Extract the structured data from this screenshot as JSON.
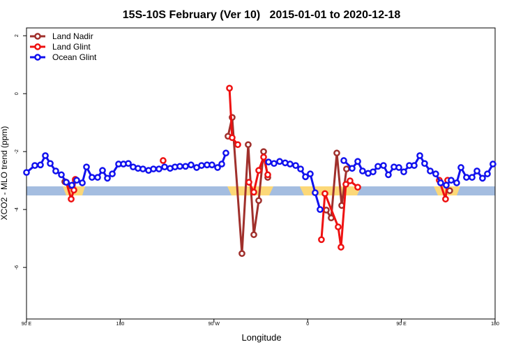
{
  "chart_data": {
    "type": "line",
    "title": "15S-10S February (Ver 10)   2015-01-01 to 2020-12-18",
    "x_label": "Longitude",
    "y_label": "XCO2 - MLO trend (ppm)",
    "xlim": [
      90,
      540
    ],
    "ylim": [
      -7.78,
      2.27
    ],
    "xticks": [
      {
        "value": 90,
        "label": "90 E"
      },
      180,
      {
        "value": 270,
        "label": "90 W"
      },
      {
        "value": 360,
        "label": "0"
      },
      {
        "value": 450,
        "label": "90 E"
      },
      {
        "value": 540,
        "label": "180"
      }
    ],
    "yticks": [
      -6,
      -4,
      -2,
      0,
      2
    ],
    "legend": "top-left",
    "series": [
      {
        "name": "Land Nadir",
        "color": "#a0302c",
        "x": [
          126.8,
          132.2,
          136.9,
          null,
          283.5,
          287.5,
          296.9,
          302.9,
          308.3,
          313.0,
          317.7,
          321.7,
          null,
          377.9,
          382.6,
          388.0,
          392.7,
          397.3,
          null,
          487.7,
          496.4
        ],
        "values": [
          -3.04,
          -3.18,
          -2.99,
          null,
          -1.47,
          -0.82,
          -5.52,
          -1.76,
          -4.87,
          -3.69,
          -2.0,
          -2.89,
          null,
          -4.02,
          -4.29,
          -2.05,
          -3.86,
          -2.6,
          null,
          -3.08,
          -3.35
        ]
      },
      {
        "name": "Land Glint",
        "color": "#ee1111",
        "x": [
          128.2,
          132.9,
          135.5,
          136.9,
          null,
          221.2,
          null,
          284.9,
          287.5,
          292.9,
          null,
          303.6,
          308.3,
          313.0,
          317.7,
          321.7,
          null,
          373.2,
          376.6,
          389.3,
          392.0,
          396.7,
          400.7,
          408.1,
          null,
          486.4,
          492.4,
          494.4
        ],
        "values": [
          -3.06,
          -3.64,
          -3.33,
          -2.96,
          null,
          -2.31,
          null,
          0.19,
          -1.52,
          -1.76,
          null,
          -3.06,
          -3.4,
          -2.65,
          -2.19,
          -2.8,
          null,
          -5.04,
          -3.45,
          -4.6,
          -5.3,
          -3.13,
          -3.01,
          -3.23,
          null,
          -2.99,
          -3.64,
          -2.99
        ]
      },
      {
        "name": "Ocean Glint",
        "color": "#1111ee",
        "x": [
          90.0,
          98.0,
          103.4,
          108.1,
          112.8,
          118.1,
          123.5,
          128.2,
          133.5,
          138.2,
          143.6,
          147.6,
          152.9,
          158.3,
          163.0,
          167.7,
          172.4,
          178.4,
          183.1,
          187.8,
          192.4,
          197.1,
          201.8,
          207.2,
          211.9,
          217.2,
          222.6,
          227.9,
          232.6,
          237.3,
          242.7,
          248.0,
          253.4,
          258.1,
          263.4,
          268.1,
          273.5,
          277.5,
          281.5,
          null,
          322.4,
          327.7,
          333.1,
          338.4,
          343.1,
          348.5,
          353.2,
          357.9,
          362.5,
          367.2,
          371.9,
          null,
          394.7,
          402.7,
          408.1,
          412.7,
          418.1,
          422.8,
          427.5,
          432.8,
          437.5,
          442.9,
          447.6,
          452.3,
          457.6,
          462.3,
          467.7,
          472.3,
          477.7,
          483.0,
          487.7,
          493.1,
          497.8,
          503.1,
          507.2,
          512.5,
          517.9,
          522.6,
          527.9,
          532.6,
          537.9
        ],
        "values": [
          -2.72,
          -2.48,
          -2.46,
          -2.14,
          -2.41,
          -2.67,
          -2.8,
          -3.06,
          -3.16,
          -2.99,
          -3.08,
          -2.53,
          -2.89,
          -2.89,
          -2.65,
          -2.92,
          -2.77,
          -2.43,
          -2.43,
          -2.41,
          -2.53,
          -2.58,
          -2.6,
          -2.65,
          -2.6,
          -2.6,
          -2.53,
          -2.58,
          -2.53,
          -2.51,
          -2.51,
          -2.46,
          -2.55,
          -2.48,
          -2.46,
          -2.46,
          -2.55,
          -2.43,
          -2.05,
          null,
          -2.36,
          -2.41,
          -2.34,
          -2.39,
          -2.43,
          -2.48,
          -2.6,
          -2.87,
          -2.77,
          -3.42,
          -4.0,
          null,
          -2.31,
          -2.58,
          -2.34,
          -2.67,
          -2.75,
          -2.7,
          -2.51,
          -2.48,
          -2.8,
          -2.53,
          -2.55,
          -2.7,
          -2.48,
          -2.48,
          -2.14,
          -2.41,
          -2.67,
          -2.77,
          -3.08,
          -3.16,
          -2.99,
          -3.08,
          -2.55,
          -2.89,
          -2.89,
          -2.67,
          -2.92,
          -2.77,
          -2.43
        ]
      }
    ]
  }
}
